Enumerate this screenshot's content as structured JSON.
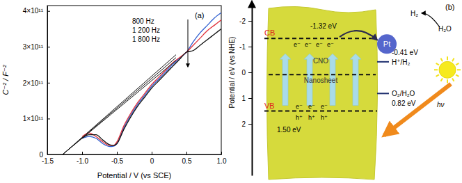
{
  "chart_data": [
    {
      "type": "line",
      "panel_label": "(a)",
      "xlabel": "Potential / V (vs SCE)",
      "ylabel": "C⁻² / F⁻²",
      "xlim": [
        -1.5,
        1.0
      ],
      "xticks": [
        -1.5,
        {
          "value": -1.0,
          "label": "-1.0"
        },
        -0.5,
        0,
        0.5,
        {
          "value": 1.0,
          "label": "1.0"
        }
      ],
      "ylim": [
        0,
        415000000000.0
      ],
      "yticks": [
        0,
        {
          "value": 100000000000.0,
          "label": "1×10¹¹"
        },
        {
          "value": 200000000000.0,
          "label": "2×10¹¹"
        },
        {
          "value": 300000000000.0,
          "label": "3×10¹¹"
        },
        {
          "value": 400000000000.0,
          "label": "4×10¹¹"
        }
      ],
      "x": [
        -1.0,
        -0.9,
        -0.8,
        -0.7,
        -0.6,
        -0.55,
        -0.5,
        -0.4,
        -0.3,
        -0.2,
        -0.1,
        0,
        0.1,
        0.2,
        0.3,
        0.4,
        0.5,
        0.6,
        0.7,
        0.8,
        0.9,
        1.0
      ],
      "series": [
        {
          "name": "800 Hz",
          "color": "#2f5fd0",
          "values": [
            45000000000.0,
            50000000000.0,
            45000000000.0,
            30000000000.0,
            22000000000.0,
            23000000000.0,
            30000000000.0,
            75000000000.0,
            110000000000.0,
            140000000000.0,
            165000000000.0,
            190000000000.0,
            210000000000.0,
            230000000000.0,
            250000000000.0,
            268000000000.0,
            285000000000.0,
            315000000000.0,
            340000000000.0,
            360000000000.0,
            380000000000.0,
            395000000000.0
          ],
          "fit": {
            "x": [
              -1.28,
              0.35
            ],
            "values": [
              0,
              278000000000.0
            ]
          }
        },
        {
          "name": "1 200 Hz",
          "color": "#e0303a",
          "values": [
            50000000000.0,
            60000000000.0,
            50000000000.0,
            35000000000.0,
            25000000000.0,
            25000000000.0,
            35000000000.0,
            80000000000.0,
            115000000000.0,
            145000000000.0,
            170000000000.0,
            195000000000.0,
            215000000000.0,
            235000000000.0,
            255000000000.0,
            270000000000.0,
            285000000000.0,
            305000000000.0,
            325000000000.0,
            345000000000.0,
            360000000000.0,
            375000000000.0
          ],
          "fit": {
            "x": [
              -1.28,
              0.35
            ],
            "values": [
              0,
              270000000000.0
            ]
          }
        },
        {
          "name": "1 800 Hz",
          "color": "#111111",
          "values": [
            45000000000.0,
            55000000000.0,
            55000000000.0,
            40000000000.0,
            27000000000.0,
            25000000000.0,
            30000000000.0,
            70000000000.0,
            105000000000.0,
            135000000000.0,
            160000000000.0,
            185000000000.0,
            205000000000.0,
            225000000000.0,
            245000000000.0,
            265000000000.0,
            285000000000.0,
            290000000000.0,
            305000000000.0,
            320000000000.0,
            335000000000.0,
            350000000000.0
          ],
          "fit": {
            "x": [
              -1.28,
              0.35
            ],
            "values": [
              0,
              262000000000.0
            ]
          }
        }
      ]
    },
    {
      "type": "band_diagram",
      "panel_label": "(b)",
      "ylabel": "Potential / eV (vs NHE)",
      "ylim": [
        -2.6,
        4.0
      ],
      "yticks": [
        -2,
        -1,
        0,
        1,
        2
      ],
      "material": [
        "CNO",
        "Nanosheet"
      ],
      "bands": [
        {
          "name": "CB",
          "value": -1.32,
          "label": "-1.32 eV"
        },
        {
          "name": "VB",
          "value": 1.5,
          "label": "1.50 eV"
        }
      ],
      "redox": [
        {
          "name": "H⁺/H₂",
          "value": -0.41,
          "label": "-0.41 eV"
        },
        {
          "name": "O₂/H₂O",
          "value": 0.82,
          "label": "0.82 eV"
        }
      ],
      "electron": "e⁻",
      "hole": "h⁺",
      "cocatalyst": "Pt",
      "products": [
        "H₂",
        "H₂O"
      ],
      "light": "hν"
    }
  ]
}
